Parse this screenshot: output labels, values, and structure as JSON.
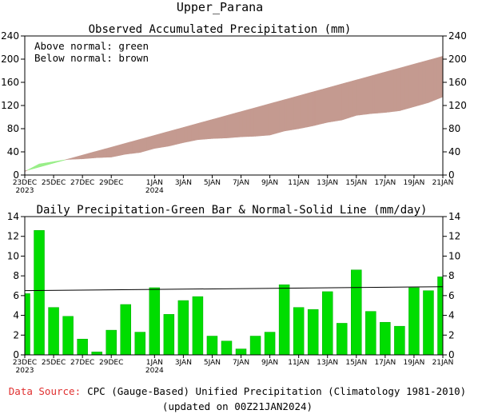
{
  "page_title": "Upper_Parana",
  "chart_data": [
    {
      "type": "area",
      "title": "Observed Accumulated Precipitation (mm)",
      "ylim": [
        0,
        240
      ],
      "yticks": [
        0,
        40,
        80,
        120,
        160,
        200,
        240
      ],
      "x_tick_labels": [
        {
          "day": 0,
          "line1": "23DEC",
          "line2": "2023"
        },
        {
          "day": 2,
          "line1": "25DEC",
          "line2": ""
        },
        {
          "day": 4,
          "line1": "27DEC",
          "line2": ""
        },
        {
          "day": 6,
          "line1": "29DEC",
          "line2": ""
        },
        {
          "day": 9,
          "line1": "1JAN",
          "line2": "2024"
        },
        {
          "day": 11,
          "line1": "3JAN",
          "line2": ""
        },
        {
          "day": 13,
          "line1": "5JAN",
          "line2": ""
        },
        {
          "day": 15,
          "line1": "7JAN",
          "line2": ""
        },
        {
          "day": 17,
          "line1": "9JAN",
          "line2": ""
        },
        {
          "day": 19,
          "line1": "11JAN",
          "line2": ""
        },
        {
          "day": 21,
          "line1": "13JAN",
          "line2": ""
        },
        {
          "day": 23,
          "line1": "15JAN",
          "line2": ""
        },
        {
          "day": 25,
          "line1": "17JAN",
          "line2": ""
        },
        {
          "day": 27,
          "line1": "19JAN",
          "line2": ""
        },
        {
          "day": 29,
          "line1": "21JAN",
          "line2": ""
        }
      ],
      "x_day_range": [
        0,
        29
      ],
      "legend_lines": [
        "Above normal: green",
        "Below normal: brown"
      ],
      "series": [
        {
          "name": "observed",
          "days": [
            0,
            1,
            2,
            3,
            4,
            5,
            6,
            7,
            8,
            9,
            10,
            11,
            12,
            13,
            14,
            15,
            16,
            17,
            18,
            19,
            20,
            21,
            22,
            23,
            24,
            25,
            26,
            27,
            28,
            29
          ],
          "values": [
            6,
            19,
            23,
            27,
            28,
            30,
            31,
            36,
            39,
            46,
            50,
            56,
            61,
            63,
            64,
            66,
            67,
            69,
            76,
            80,
            85,
            91,
            95,
            103,
            106,
            108,
            111,
            118,
            125,
            135
          ]
        },
        {
          "name": "normal",
          "days": [
            0,
            29
          ],
          "values": [
            7,
            205
          ]
        }
      ],
      "colors": {
        "above": "#99ee88",
        "below": "#c49a90"
      }
    },
    {
      "type": "bar",
      "title": "Daily Precipitation-Green Bar & Normal-Solid Line (mm/day)",
      "ylim": [
        0,
        14
      ],
      "yticks": [
        0,
        2,
        4,
        6,
        8,
        10,
        12,
        14
      ],
      "x_tick_labels": [
        {
          "day": 0,
          "line1": "23DEC",
          "line2": "2023"
        },
        {
          "day": 2,
          "line1": "25DEC",
          "line2": ""
        },
        {
          "day": 4,
          "line1": "27DEC",
          "line2": ""
        },
        {
          "day": 6,
          "line1": "29DEC",
          "line2": ""
        },
        {
          "day": 9,
          "line1": "1JAN",
          "line2": "2024"
        },
        {
          "day": 11,
          "line1": "3JAN",
          "line2": ""
        },
        {
          "day": 13,
          "line1": "5JAN",
          "line2": ""
        },
        {
          "day": 15,
          "line1": "7JAN",
          "line2": ""
        },
        {
          "day": 17,
          "line1": "9JAN",
          "line2": ""
        },
        {
          "day": 19,
          "line1": "11JAN",
          "line2": ""
        },
        {
          "day": 21,
          "line1": "13JAN",
          "line2": ""
        },
        {
          "day": 23,
          "line1": "15JAN",
          "line2": ""
        },
        {
          "day": 25,
          "line1": "17JAN",
          "line2": ""
        },
        {
          "day": 27,
          "line1": "19JAN",
          "line2": ""
        },
        {
          "day": 29,
          "line1": "21JAN",
          "line2": ""
        }
      ],
      "x_day_range": [
        0,
        29
      ],
      "series": [
        {
          "name": "daily precipitation",
          "days": [
            0,
            1,
            2,
            3,
            4,
            5,
            6,
            7,
            8,
            9,
            10,
            11,
            12,
            13,
            14,
            15,
            16,
            17,
            18,
            19,
            20,
            21,
            22,
            23,
            24,
            25,
            26,
            27,
            28,
            29
          ],
          "values": [
            6.2,
            12.6,
            4.8,
            3.9,
            1.6,
            0.3,
            2.5,
            5.1,
            2.3,
            6.8,
            4.1,
            5.5,
            5.9,
            1.9,
            1.4,
            0.6,
            1.9,
            2.3,
            7.1,
            4.8,
            4.6,
            6.4,
            3.2,
            8.6,
            4.4,
            3.3,
            2.9,
            6.8,
            6.5,
            7.9
          ]
        },
        {
          "name": "normal",
          "days": [
            0,
            29
          ],
          "values": [
            6.5,
            6.9
          ]
        }
      ],
      "colors": {
        "bar": "#00dd00",
        "bar_edge": "#00aa00",
        "line": "#000000"
      }
    }
  ],
  "footer": {
    "source_label": "Data Source:",
    "source_text": "CPC (Gauge-Based) Unified Precipitation (Climatology 1981-2010)",
    "updated": "(updated on 00Z21JAN2024)"
  }
}
